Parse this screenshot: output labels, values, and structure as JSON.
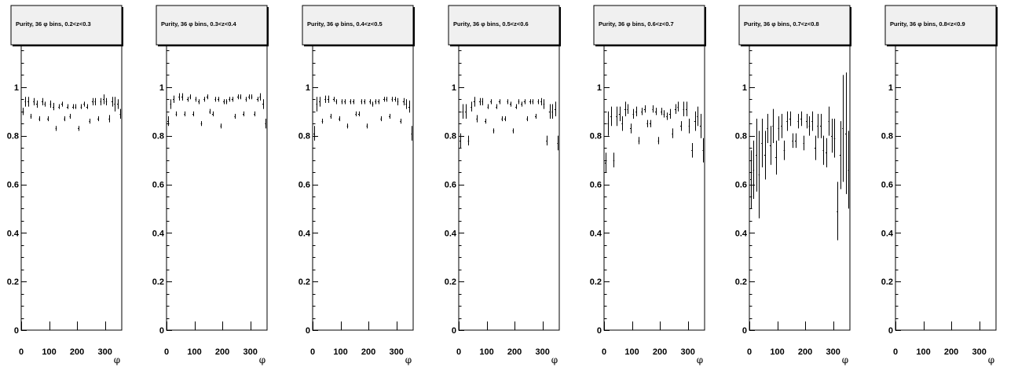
{
  "figure": {
    "background": "#ffffff",
    "frame_color": "#000000",
    "title_box_fill": "#f0f0f0",
    "marker_color": "#000000"
  },
  "chart_data": [
    {
      "type": "scatter",
      "title": "Purity, 36 φ bins, 0.2<z<0.3",
      "xlabel": "φ",
      "ylabel": "",
      "xlim": [
        0,
        360
      ],
      "ylim": [
        0,
        1.2
      ],
      "xticks": [
        0,
        100,
        200,
        300
      ],
      "yticks": [
        0,
        0.2,
        0.4,
        0.6,
        0.8,
        1
      ],
      "ytick_labels": [
        "0",
        "0.2",
        "0.4",
        "0.6",
        "0.8",
        "1"
      ],
      "grid": false,
      "legend": "none",
      "x_bin_halfwidth": 5,
      "series": [
        {
          "x": [
            5,
            15,
            25,
            35,
            45,
            55,
            65,
            75,
            85,
            95,
            105,
            115,
            125,
            135,
            145,
            155,
            165,
            175,
            185,
            195,
            205,
            215,
            225,
            235,
            245,
            255,
            265,
            275,
            285,
            295,
            305,
            315,
            325,
            335,
            345,
            355
          ],
          "y": [
            0.9,
            0.94,
            0.94,
            0.88,
            0.94,
            0.93,
            0.87,
            0.94,
            0.93,
            0.87,
            0.93,
            0.92,
            0.83,
            0.92,
            0.93,
            0.87,
            0.92,
            0.88,
            0.92,
            0.92,
            0.83,
            0.92,
            0.93,
            0.92,
            0.86,
            0.94,
            0.94,
            0.87,
            0.94,
            0.95,
            0.94,
            0.87,
            0.94,
            0.93,
            0.93,
            0.89
          ],
          "err": [
            0.015,
            0.02,
            0.02,
            0.01,
            0.015,
            0.015,
            0.01,
            0.015,
            0.01,
            0.01,
            0.015,
            0.015,
            0.01,
            0.01,
            0.01,
            0.01,
            0.01,
            0.01,
            0.01,
            0.01,
            0.01,
            0.01,
            0.01,
            0.01,
            0.01,
            0.015,
            0.015,
            0.01,
            0.015,
            0.02,
            0.015,
            0.015,
            0.02,
            0.03,
            0.02,
            0.02
          ]
        }
      ]
    },
    {
      "type": "scatter",
      "title": "Purity, 36 φ bins, 0.3<z<0.4",
      "xlabel": "φ",
      "ylabel": "",
      "xlim": [
        0,
        360
      ],
      "ylim": [
        0,
        1.2
      ],
      "xticks": [
        0,
        100,
        200,
        300
      ],
      "yticks": [
        0,
        0.2,
        0.4,
        0.6,
        0.8,
        1
      ],
      "ytick_labels": [
        "0",
        "0.2",
        "0.4",
        "0.6",
        "0.8",
        "1"
      ],
      "grid": false,
      "legend": "none",
      "x_bin_halfwidth": 5,
      "series": [
        {
          "x": [
            5,
            15,
            25,
            35,
            45,
            55,
            65,
            75,
            85,
            95,
            105,
            115,
            125,
            135,
            145,
            155,
            165,
            175,
            185,
            195,
            205,
            215,
            225,
            235,
            245,
            255,
            265,
            275,
            285,
            295,
            305,
            315,
            325,
            335,
            345,
            355
          ],
          "y": [
            0.86,
            0.93,
            0.95,
            0.89,
            0.96,
            0.96,
            0.89,
            0.95,
            0.96,
            0.89,
            0.95,
            0.94,
            0.85,
            0.95,
            0.96,
            0.9,
            0.89,
            0.95,
            0.95,
            0.84,
            0.94,
            0.94,
            0.95,
            0.95,
            0.88,
            0.96,
            0.96,
            0.89,
            0.95,
            0.96,
            0.96,
            0.89,
            0.95,
            0.96,
            0.93,
            0.85
          ],
          "err": [
            0.02,
            0.02,
            0.015,
            0.01,
            0.015,
            0.015,
            0.01,
            0.01,
            0.01,
            0.01,
            0.01,
            0.01,
            0.01,
            0.01,
            0.01,
            0.01,
            0.01,
            0.01,
            0.01,
            0.01,
            0.01,
            0.01,
            0.01,
            0.01,
            0.01,
            0.01,
            0.01,
            0.01,
            0.01,
            0.01,
            0.01,
            0.01,
            0.01,
            0.015,
            0.02,
            0.02
          ]
        }
      ]
    },
    {
      "type": "scatter",
      "title": "Purity, 36 φ bins, 0.4<z<0.5",
      "xlabel": "φ",
      "ylabel": "",
      "xlim": [
        0,
        360
      ],
      "ylim": [
        0,
        1.2
      ],
      "xticks": [
        0,
        100,
        200,
        300
      ],
      "yticks": [
        0,
        0.2,
        0.4,
        0.6,
        0.8,
        1
      ],
      "ytick_labels": [
        "0",
        "0.2",
        "0.4",
        "0.6",
        "0.8",
        "1"
      ],
      "grid": false,
      "legend": "none",
      "x_bin_halfwidth": 5,
      "series": [
        {
          "x": [
            5,
            15,
            25,
            35,
            45,
            55,
            65,
            75,
            85,
            95,
            105,
            115,
            125,
            135,
            145,
            155,
            165,
            175,
            185,
            195,
            205,
            215,
            225,
            235,
            245,
            255,
            265,
            275,
            285,
            295,
            305,
            315,
            325,
            335,
            345,
            355
          ],
          "y": [
            0.81,
            0.93,
            0.94,
            0.86,
            0.95,
            0.95,
            0.88,
            0.95,
            0.94,
            0.87,
            0.94,
            0.94,
            0.84,
            0.94,
            0.94,
            0.89,
            0.89,
            0.94,
            0.94,
            0.84,
            0.94,
            0.93,
            0.94,
            0.94,
            0.87,
            0.95,
            0.95,
            0.88,
            0.95,
            0.95,
            0.94,
            0.86,
            0.94,
            0.93,
            0.92,
            0.81
          ],
          "err": [
            0.03,
            0.03,
            0.02,
            0.01,
            0.015,
            0.015,
            0.01,
            0.01,
            0.01,
            0.01,
            0.01,
            0.01,
            0.01,
            0.01,
            0.01,
            0.01,
            0.01,
            0.01,
            0.01,
            0.01,
            0.01,
            0.01,
            0.01,
            0.01,
            0.01,
            0.01,
            0.01,
            0.01,
            0.01,
            0.01,
            0.015,
            0.01,
            0.015,
            0.02,
            0.025,
            0.03
          ]
        }
      ]
    },
    {
      "type": "scatter",
      "title": "Purity, 36 φ bins, 0.5<z<0.6",
      "xlabel": "φ",
      "ylabel": "",
      "xlim": [
        0,
        360
      ],
      "ylim": [
        0,
        1.2
      ],
      "xticks": [
        0,
        100,
        200,
        300
      ],
      "yticks": [
        0,
        0.2,
        0.4,
        0.6,
        0.8,
        1
      ],
      "ytick_labels": [
        "0",
        "0.2",
        "0.4",
        "0.6",
        "0.8",
        "1"
      ],
      "grid": false,
      "legend": "none",
      "x_bin_halfwidth": 5,
      "series": [
        {
          "x": [
            5,
            15,
            25,
            35,
            45,
            55,
            65,
            75,
            85,
            95,
            105,
            115,
            125,
            135,
            145,
            155,
            165,
            175,
            185,
            195,
            205,
            215,
            225,
            235,
            245,
            255,
            265,
            275,
            285,
            295,
            305,
            315,
            325,
            335,
            345,
            355
          ],
          "y": [
            0.78,
            0.9,
            0.9,
            0.78,
            0.92,
            0.94,
            0.87,
            0.94,
            0.94,
            0.86,
            0.92,
            0.94,
            0.82,
            0.92,
            0.94,
            0.87,
            0.87,
            0.94,
            0.93,
            0.82,
            0.92,
            0.94,
            0.93,
            0.94,
            0.87,
            0.94,
            0.94,
            0.88,
            0.94,
            0.94,
            0.93,
            0.78,
            0.9,
            0.9,
            0.91,
            0.77
          ],
          "err": [
            0.03,
            0.03,
            0.03,
            0.02,
            0.02,
            0.02,
            0.015,
            0.015,
            0.015,
            0.01,
            0.01,
            0.01,
            0.01,
            0.01,
            0.01,
            0.01,
            0.01,
            0.01,
            0.01,
            0.01,
            0.01,
            0.01,
            0.01,
            0.01,
            0.01,
            0.01,
            0.01,
            0.01,
            0.01,
            0.015,
            0.02,
            0.02,
            0.03,
            0.03,
            0.03,
            0.03
          ]
        }
      ]
    },
    {
      "type": "scatter",
      "title": "Purity, 36 φ bins, 0.6<z<0.7",
      "xlabel": "φ",
      "ylabel": "",
      "xlim": [
        0,
        360
      ],
      "ylim": [
        0,
        1.2
      ],
      "xticks": [
        0,
        100,
        200,
        300
      ],
      "yticks": [
        0,
        0.2,
        0.4,
        0.6,
        0.8,
        1
      ],
      "ytick_labels": [
        "0",
        "0.2",
        "0.4",
        "0.6",
        "0.8",
        "1"
      ],
      "grid": false,
      "legend": "none",
      "x_bin_halfwidth": 5,
      "series": [
        {
          "x": [
            5,
            15,
            25,
            35,
            45,
            55,
            65,
            75,
            85,
            95,
            105,
            115,
            125,
            135,
            145,
            155,
            165,
            175,
            185,
            195,
            205,
            215,
            225,
            235,
            245,
            255,
            265,
            275,
            285,
            295,
            305,
            315,
            325,
            335,
            345,
            355
          ],
          "y": [
            0.69,
            0.85,
            0.88,
            0.7,
            0.88,
            0.89,
            0.85,
            0.91,
            0.91,
            0.83,
            0.89,
            0.9,
            0.78,
            0.9,
            0.91,
            0.85,
            0.85,
            0.91,
            0.9,
            0.78,
            0.9,
            0.89,
            0.88,
            0.89,
            0.81,
            0.91,
            0.92,
            0.84,
            0.91,
            0.91,
            0.84,
            0.74,
            0.86,
            0.88,
            0.84,
            0.74
          ],
          "err": [
            0.04,
            0.05,
            0.04,
            0.03,
            0.04,
            0.03,
            0.03,
            0.03,
            0.02,
            0.02,
            0.02,
            0.02,
            0.015,
            0.015,
            0.015,
            0.015,
            0.015,
            0.015,
            0.015,
            0.015,
            0.015,
            0.015,
            0.015,
            0.02,
            0.02,
            0.02,
            0.02,
            0.02,
            0.03,
            0.03,
            0.03,
            0.03,
            0.04,
            0.04,
            0.05,
            0.05
          ]
        }
      ]
    },
    {
      "type": "scatter",
      "title": "Purity, 36 φ bins, 0.7<z<0.8",
      "xlabel": "φ",
      "ylabel": "",
      "xlim": [
        0,
        360
      ],
      "ylim": [
        0,
        1.2
      ],
      "xticks": [
        0,
        100,
        200,
        300
      ],
      "yticks": [
        0,
        0.2,
        0.4,
        0.6,
        0.8,
        1
      ],
      "ytick_labels": [
        "0",
        "0.2",
        "0.4",
        "0.6",
        "0.8",
        "1"
      ],
      "grid": false,
      "legend": "none",
      "x_bin_halfwidth": 5,
      "series": [
        {
          "x": [
            5,
            15,
            25,
            35,
            45,
            55,
            65,
            75,
            85,
            95,
            105,
            115,
            125,
            135,
            145,
            155,
            165,
            175,
            185,
            195,
            205,
            215,
            225,
            235,
            245,
            255,
            265,
            275,
            285,
            295,
            305,
            315,
            325,
            335,
            345,
            355
          ],
          "y": [
            0.62,
            0.66,
            0.72,
            0.64,
            0.77,
            0.72,
            0.83,
            0.76,
            0.84,
            0.71,
            0.83,
            0.84,
            0.74,
            0.86,
            0.87,
            0.78,
            0.78,
            0.86,
            0.87,
            0.77,
            0.86,
            0.84,
            0.86,
            0.75,
            0.84,
            0.84,
            0.74,
            0.73,
            0.86,
            0.8,
            0.79,
            0.49,
            0.72,
            0.83,
            0.81,
            0.66
          ],
          "err": [
            0.12,
            0.12,
            0.15,
            0.18,
            0.1,
            0.1,
            0.06,
            0.08,
            0.07,
            0.07,
            0.05,
            0.05,
            0.04,
            0.04,
            0.03,
            0.03,
            0.03,
            0.03,
            0.03,
            0.03,
            0.03,
            0.04,
            0.04,
            0.05,
            0.05,
            0.05,
            0.06,
            0.06,
            0.06,
            0.07,
            0.08,
            0.12,
            0.14,
            0.22,
            0.25,
            0.16
          ]
        }
      ]
    },
    {
      "type": "scatter",
      "title": "Purity, 36 φ bins, 0.8<z<0.9",
      "xlabel": "φ",
      "ylabel": "",
      "xlim": [
        0,
        360
      ],
      "ylim": [
        0,
        1.2
      ],
      "xticks": [
        0,
        100,
        200,
        300
      ],
      "yticks": [
        0,
        0.2,
        0.4,
        0.6,
        0.8,
        1
      ],
      "ytick_labels": [
        "0",
        "0.2",
        "0.4",
        "0.6",
        "0.8",
        "1"
      ],
      "grid": false,
      "legend": "none",
      "x_bin_halfwidth": 5,
      "series": []
    }
  ]
}
